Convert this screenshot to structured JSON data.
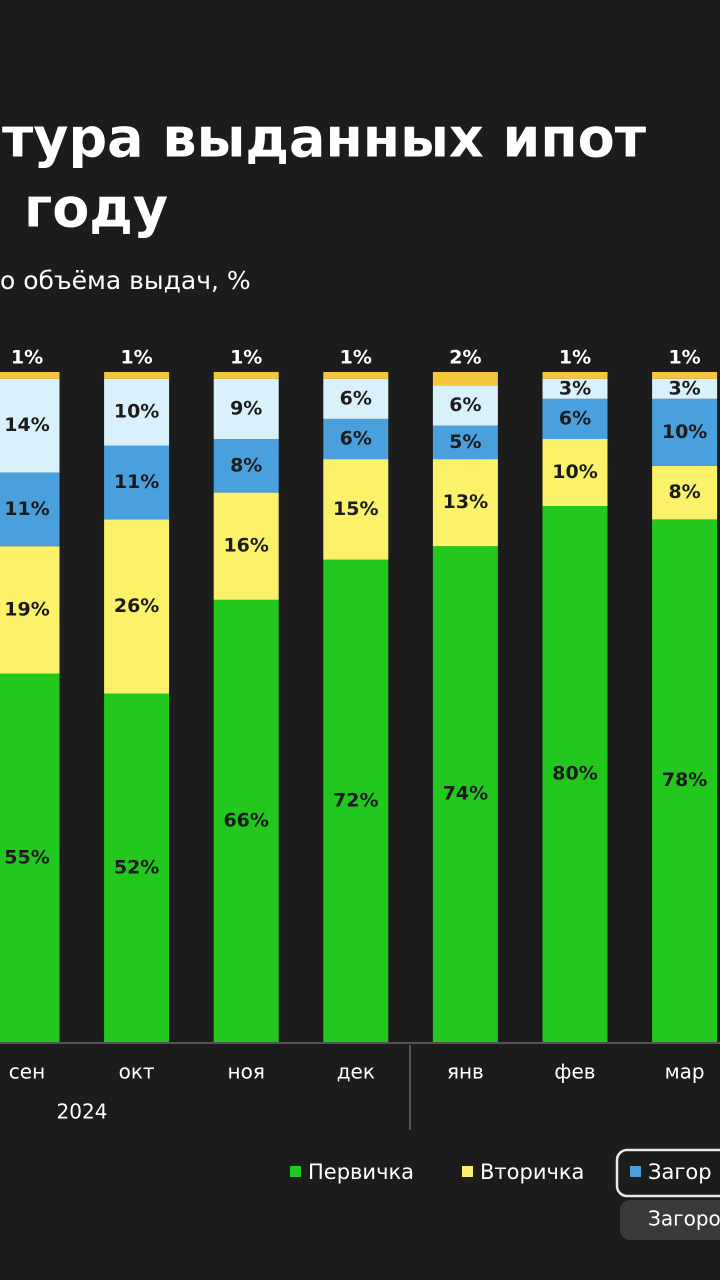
{
  "chart_data": {
    "type": "bar",
    "stacked": true,
    "title_lines": [
      "тура выданных ипот",
      "году"
    ],
    "subtitle": "о объёма выдач, %",
    "categories": [
      "сен",
      "окт",
      "ноя",
      "дек",
      "янв",
      "фев",
      "мар"
    ],
    "year_label": "2024",
    "ylim": [
      0,
      100
    ],
    "series": [
      {
        "name": "Первичка",
        "color": "#22c81e",
        "values": [
          55,
          52,
          66,
          72,
          74,
          80,
          78
        ],
        "value_labels": [
          "55%",
          "52%",
          "66%",
          "72%",
          "74%",
          "80%",
          "78%"
        ]
      },
      {
        "name": "Вторичка",
        "color": "#fbf26a",
        "values": [
          19,
          26,
          16,
          15,
          13,
          10,
          8
        ],
        "value_labels": [
          "19%",
          "26%",
          "16%",
          "15%",
          "13%",
          "10%",
          "8%"
        ]
      },
      {
        "name": "Загор",
        "color": "#4aa0dc",
        "values": [
          11,
          11,
          8,
          6,
          5,
          6,
          10
        ],
        "value_labels": [
          "11%",
          "11%",
          "8%",
          "6%",
          "5%",
          "6%",
          "10%"
        ]
      },
      {
        "color": "#d9f1fb",
        "values": [
          14,
          10,
          9,
          6,
          6,
          3,
          3
        ],
        "value_labels": [
          "14%",
          "10%",
          "9%",
          "6%",
          "6%",
          "3%",
          "3%"
        ]
      },
      {
        "color": "#f4c63c",
        "values": [
          1,
          1,
          1,
          1,
          2,
          1,
          1
        ],
        "value_labels": [
          "1%",
          "1%",
          "1%",
          "1%",
          "2%",
          "1%",
          "1%"
        ]
      }
    ],
    "tooltip": "Загоро"
  }
}
